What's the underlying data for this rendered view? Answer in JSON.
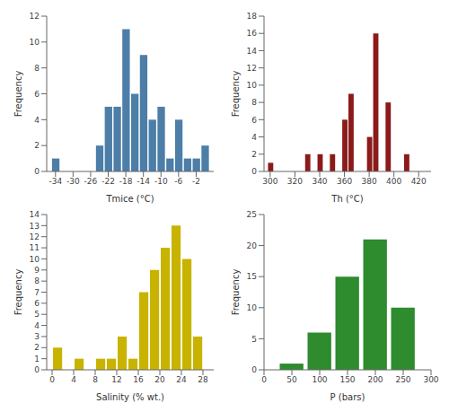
{
  "chart_data": [
    {
      "type": "bar",
      "xlabel": "Tmice (°C)",
      "ylabel": "Frequency",
      "color": "#4d7ea8",
      "x": [
        -34,
        -26,
        -24,
        -22,
        -20,
        -18,
        -16,
        -14,
        -12,
        -10,
        -8,
        -6,
        -4,
        -2,
        0
      ],
      "values": [
        1,
        0,
        2,
        5,
        5,
        11,
        6,
        9,
        4,
        5,
        1,
        4,
        1,
        1,
        2
      ],
      "xlim": [
        -36,
        2
      ],
      "ylim": [
        0,
        12
      ],
      "xticks": [
        -34,
        -30,
        -26,
        -22,
        -18,
        -14,
        -10,
        -6,
        -2
      ],
      "yticks": [
        0,
        2,
        4,
        6,
        8,
        10,
        12
      ],
      "grid": false
    },
    {
      "type": "bar",
      "xlabel": "Th (°C)",
      "ylabel": "Frequency",
      "color": "#8b1a1a",
      "x": [
        300,
        310,
        320,
        325,
        330,
        335,
        340,
        345,
        350,
        355,
        360,
        365,
        370,
        375,
        380,
        385,
        390,
        395,
        400,
        405,
        410,
        415,
        420
      ],
      "values": [
        1,
        0,
        0,
        0,
        2,
        0,
        2,
        0,
        2,
        0,
        6,
        9,
        0,
        0,
        4,
        16,
        0,
        8,
        0,
        0,
        2,
        0,
        0
      ],
      "xlim": [
        295,
        430
      ],
      "ylim": [
        0,
        18
      ],
      "xticks": [
        300,
        320,
        340,
        360,
        380,
        400,
        420
      ],
      "yticks": [
        0,
        2,
        4,
        6,
        8,
        10,
        12,
        14,
        16,
        18
      ],
      "grid": false
    },
    {
      "type": "bar",
      "xlabel": "Salinity (% wt.)",
      "ylabel": "Frequency",
      "color": "#c8b400",
      "x": [
        1,
        3,
        5,
        7,
        9,
        11,
        13,
        15,
        17,
        19,
        21,
        23,
        25,
        27
      ],
      "values": [
        2,
        0,
        1,
        0,
        1,
        1,
        3,
        1,
        7,
        9,
        11,
        13,
        10,
        3
      ],
      "xlim": [
        -1,
        30
      ],
      "ylim": [
        0,
        14
      ],
      "xticks": [
        0,
        4,
        8,
        12,
        16,
        20,
        24,
        28
      ],
      "yticks": [
        0,
        1,
        2,
        3,
        4,
        5,
        6,
        7,
        8,
        9,
        10,
        11,
        12,
        13,
        14
      ],
      "grid": false
    },
    {
      "type": "bar",
      "xlabel": "P (bars)",
      "ylabel": "Frequency",
      "color": "#2e8b2e",
      "x": [
        50,
        100,
        150,
        200,
        250
      ],
      "values": [
        1,
        6,
        15,
        21,
        10
      ],
      "xlim": [
        0,
        300
      ],
      "ylim": [
        0,
        25
      ],
      "xticks": [
        0,
        50,
        100,
        150,
        200,
        250,
        300
      ],
      "yticks": [
        0,
        5,
        10,
        15,
        20,
        25
      ],
      "grid": false
    }
  ]
}
